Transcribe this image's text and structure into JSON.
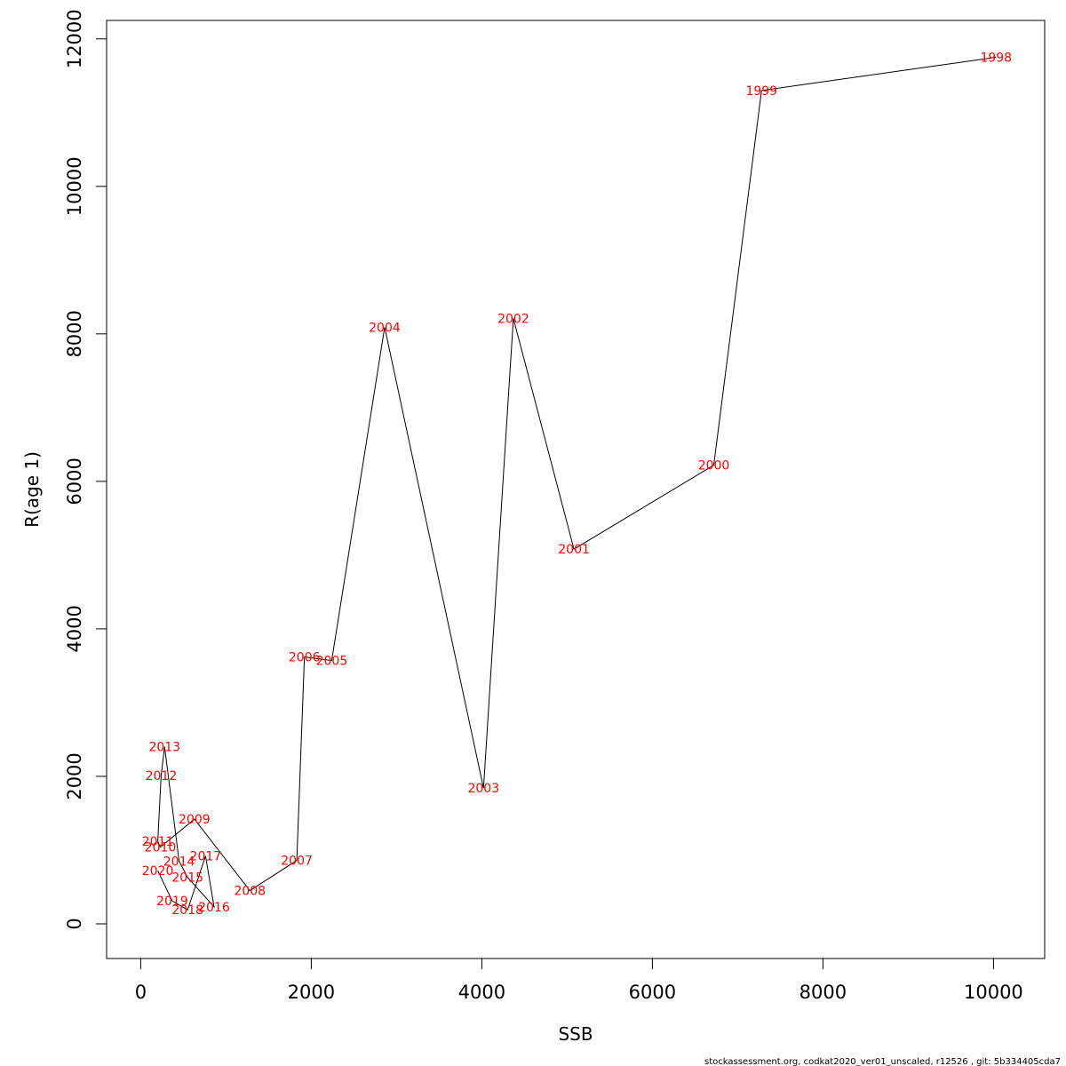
{
  "chart_data": {
    "type": "line",
    "xlabel": "SSB",
    "ylabel": "R(age 1)",
    "xlim": [
      -400,
      10600
    ],
    "ylim": [
      -470,
      12250
    ],
    "x_ticks": [
      0,
      2000,
      4000,
      6000,
      8000,
      10000
    ],
    "y_ticks": [
      0,
      2000,
      4000,
      6000,
      8000,
      10000,
      12000
    ],
    "line_color": "#000000",
    "label_color": "#ff0000",
    "points": [
      {
        "label": "1998",
        "x": 10030,
        "y": 11750
      },
      {
        "label": "1999",
        "x": 7280,
        "y": 11300
      },
      {
        "label": "2000",
        "x": 6720,
        "y": 6220
      },
      {
        "label": "2001",
        "x": 5080,
        "y": 5080
      },
      {
        "label": "2002",
        "x": 4370,
        "y": 8210
      },
      {
        "label": "2003",
        "x": 4020,
        "y": 1840
      },
      {
        "label": "2004",
        "x": 2860,
        "y": 8090
      },
      {
        "label": "2005",
        "x": 2240,
        "y": 3570
      },
      {
        "label": "2006",
        "x": 1920,
        "y": 3620
      },
      {
        "label": "2007",
        "x": 1830,
        "y": 860
      },
      {
        "label": "2008",
        "x": 1280,
        "y": 450
      },
      {
        "label": "2009",
        "x": 630,
        "y": 1420
      },
      {
        "label": "2010",
        "x": 230,
        "y": 1040
      },
      {
        "label": "2011",
        "x": 200,
        "y": 1120
      },
      {
        "label": "2012",
        "x": 240,
        "y": 2010
      },
      {
        "label": "2013",
        "x": 280,
        "y": 2400
      },
      {
        "label": "2014",
        "x": 450,
        "y": 850
      },
      {
        "label": "2015",
        "x": 550,
        "y": 630
      },
      {
        "label": "2016",
        "x": 860,
        "y": 230
      },
      {
        "label": "2017",
        "x": 760,
        "y": 920
      },
      {
        "label": "2018",
        "x": 550,
        "y": 190
      },
      {
        "label": "2019",
        "x": 370,
        "y": 310
      },
      {
        "label": "2020",
        "x": 200,
        "y": 720
      }
    ]
  },
  "footer": "stockassessment.org, codkat2020_ver01_unscaled, r12526 , git: 5b334405cda7"
}
